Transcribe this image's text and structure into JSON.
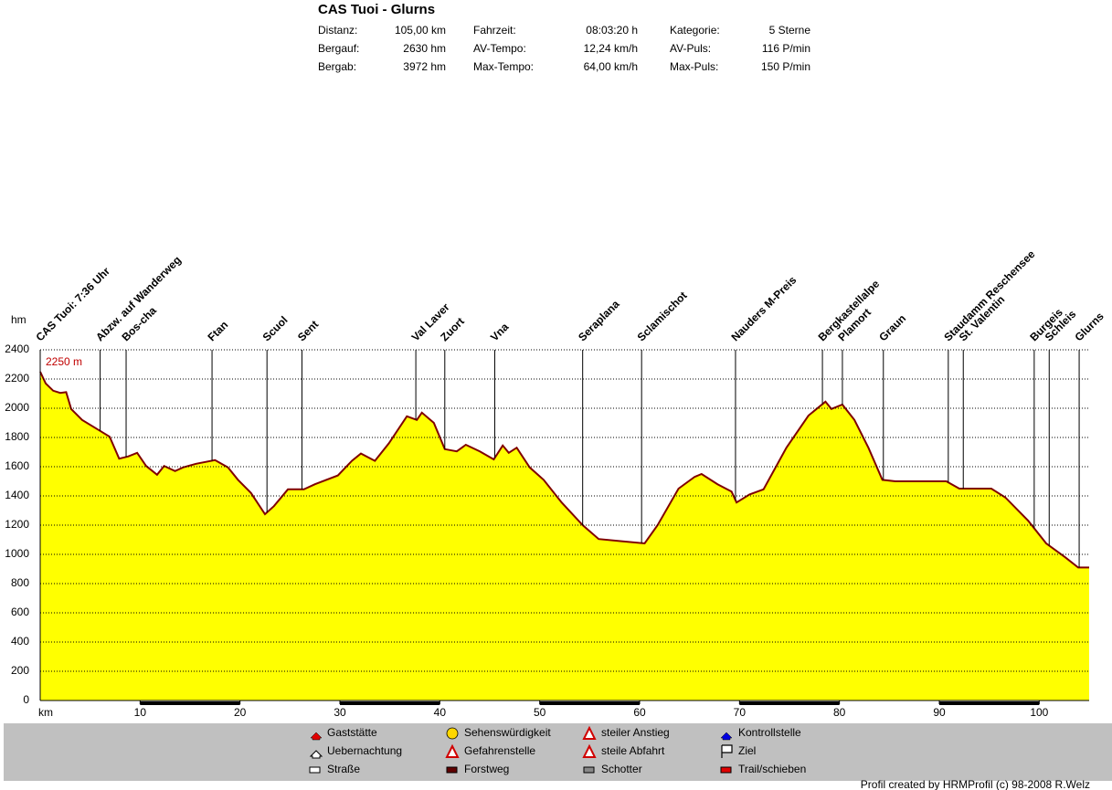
{
  "header": {
    "title": "CAS Tuoi - Glurns",
    "stats": [
      [
        [
          "Distanz:",
          "105,00 km"
        ],
        [
          "Fahrzeit:",
          "08:03:20 h"
        ],
        [
          "Kategorie:",
          "5 Sterne"
        ]
      ],
      [
        [
          "Bergauf:",
          "2630 hm"
        ],
        [
          "AV-Tempo:",
          "12,24 km/h"
        ],
        [
          "AV-Puls:",
          "116 P/min"
        ]
      ],
      [
        [
          "Bergab:",
          "3972 hm"
        ],
        [
          "Max-Tempo:",
          "64,00 km/h"
        ],
        [
          "Max-Puls:",
          "150 P/min"
        ]
      ]
    ]
  },
  "chart_data": {
    "type": "area",
    "y_label": "hm",
    "x_label": "km",
    "annotation": "2250 m",
    "color": "#ffff00",
    "line_color": "#800000",
    "grid": true,
    "xlim": [
      0,
      105
    ],
    "xticks": [
      10,
      20,
      30,
      40,
      50,
      60,
      70,
      80,
      90,
      100
    ],
    "ylim": [
      0,
      2400
    ],
    "yticks": [
      0,
      200,
      400,
      600,
      800,
      1000,
      1200,
      1400,
      1600,
      1800,
      2000,
      2200,
      2400
    ],
    "x": [
      0,
      0.55,
      1.3,
      2.0,
      2.6,
      3.1,
      4.2,
      6.0,
      6.95,
      7.9,
      8.8,
      9.7,
      10.6,
      11.7,
      12.4,
      13.5,
      14.3,
      15.6,
      17.5,
      18.8,
      19.8,
      21.1,
      22.5,
      23.4,
      24.8,
      26.4,
      27.5,
      29.8,
      31.2,
      32.1,
      33.5,
      34.9,
      36.7,
      37.7,
      38.2,
      39.4,
      40.5,
      41.7,
      42.6,
      44.0,
      45.4,
      46.3,
      46.9,
      47.7,
      49.0,
      50.4,
      52.2,
      54.3,
      55.9,
      58.2,
      60.5,
      61.8,
      63.9,
      65.5,
      66.2,
      67.8,
      69.2,
      69.7,
      71.0,
      72.4,
      74.7,
      76.9,
      78.6,
      79.2,
      80.3,
      81.5,
      82.9,
      84.3,
      85.6,
      90.7,
      92.0,
      95.2,
      96.6,
      98.9,
      100.7,
      102.6,
      103.9,
      105.0
    ],
    "values": [
      2250,
      2170,
      2120,
      2105,
      2110,
      1995,
      1920,
      1845,
      1805,
      1655,
      1670,
      1695,
      1605,
      1545,
      1605,
      1570,
      1595,
      1620,
      1645,
      1595,
      1510,
      1420,
      1275,
      1330,
      1445,
      1445,
      1480,
      1540,
      1640,
      1690,
      1640,
      1760,
      1945,
      1920,
      1970,
      1900,
      1720,
      1705,
      1750,
      1705,
      1650,
      1745,
      1695,
      1730,
      1595,
      1510,
      1355,
      1200,
      1105,
      1090,
      1075,
      1200,
      1450,
      1530,
      1550,
      1480,
      1430,
      1355,
      1410,
      1445,
      1730,
      1950,
      2045,
      1995,
      2025,
      1920,
      1730,
      1510,
      1500,
      1500,
      1450,
      1450,
      1390,
      1230,
      1075,
      980,
      910,
      910
    ],
    "markers": [
      {
        "label": "CAS Tuoi: 7:36 Uhr",
        "km": 0
      },
      {
        "label": "Abzw. auf Wanderweg",
        "km": 6.0
      },
      {
        "label": "Bos-cha",
        "km": 8.6
      },
      {
        "label": "Ftan",
        "km": 17.2
      },
      {
        "label": "Scuol",
        "km": 22.7
      },
      {
        "label": "Sent",
        "km": 26.2
      },
      {
        "label": "Val Laver",
        "km": 37.6
      },
      {
        "label": "Zuort",
        "km": 40.5
      },
      {
        "label": "Vna",
        "km": 45.5
      },
      {
        "label": "Seraplana",
        "km": 54.3
      },
      {
        "label": "Sclamischot",
        "km": 60.2
      },
      {
        "label": "Nauders M-Preis",
        "km": 69.6
      },
      {
        "label": "Bergkastellalpe",
        "km": 78.3
      },
      {
        "label": "Plamort",
        "km": 80.3
      },
      {
        "label": "Graun",
        "km": 84.4
      },
      {
        "label": "Staudamm Reschensee",
        "km": 90.9
      },
      {
        "label": "St. Valentin",
        "km": 92.4
      },
      {
        "label": "Burgeis",
        "km": 99.5
      },
      {
        "label": "Schleis",
        "km": 101.0
      },
      {
        "label": "Glurns",
        "km": 104.0
      }
    ]
  },
  "legend": [
    [
      "Gaststätte",
      "Sehenswürdigkeit",
      "steiler Anstieg",
      "Kontrollstelle"
    ],
    [
      "Uebernachtung",
      "Gefahrenstelle",
      "steile Abfahrt",
      "Ziel"
    ],
    [
      "Straße",
      "Forstweg",
      "Schotter",
      "Trail/schieben"
    ]
  ],
  "footer": "Profil created by HRMProfil (c) 98-2008 R.Welz"
}
